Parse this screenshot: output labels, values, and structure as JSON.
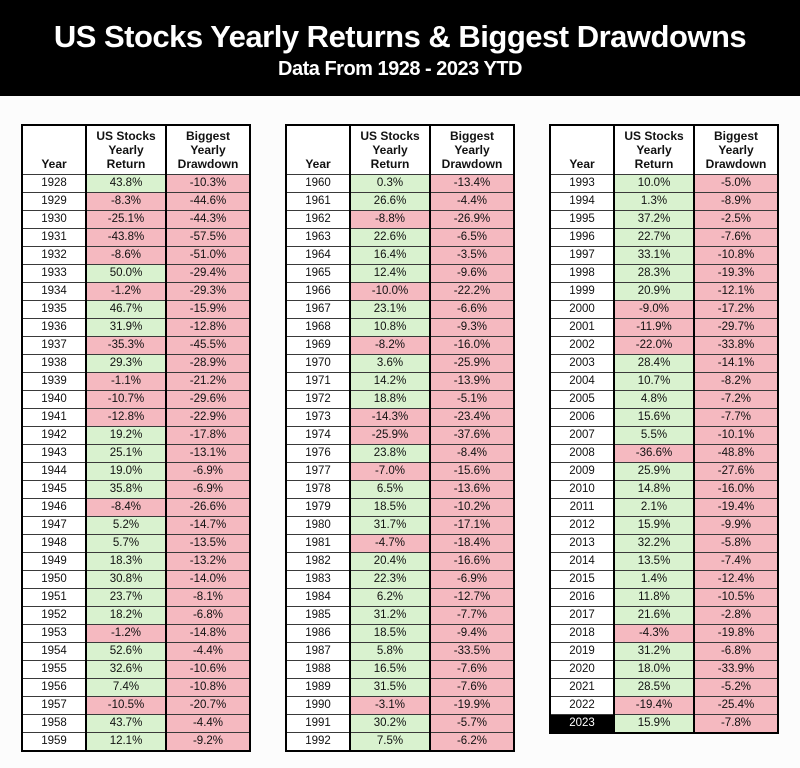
{
  "header": {
    "title": "US Stocks Yearly Returns & Biggest Drawdowns",
    "subtitle": "Data From 1928 - 2023 YTD"
  },
  "colors": {
    "positive_cell": "#d9f2cf",
    "negative_cell": "#f5b9c0",
    "banner_bg": "#000000",
    "banner_text": "#ffffff",
    "highlight_year_bg": "#000000",
    "highlight_year_text": "#ffffff"
  },
  "columns": [
    {
      "label": "Year"
    },
    {
      "label": "US Stocks\nYearly\nReturn"
    },
    {
      "label": "Biggest\nYearly\nDrawdown"
    }
  ],
  "highlight_year": "2023",
  "tables": [
    {
      "rows": [
        [
          "1928",
          "43.8%",
          "-10.3%"
        ],
        [
          "1929",
          "-8.3%",
          "-44.6%"
        ],
        [
          "1930",
          "-25.1%",
          "-44.3%"
        ],
        [
          "1931",
          "-43.8%",
          "-57.5%"
        ],
        [
          "1932",
          "-8.6%",
          "-51.0%"
        ],
        [
          "1933",
          "50.0%",
          "-29.4%"
        ],
        [
          "1934",
          "-1.2%",
          "-29.3%"
        ],
        [
          "1935",
          "46.7%",
          "-15.9%"
        ],
        [
          "1936",
          "31.9%",
          "-12.8%"
        ],
        [
          "1937",
          "-35.3%",
          "-45.5%"
        ],
        [
          "1938",
          "29.3%",
          "-28.9%"
        ],
        [
          "1939",
          "-1.1%",
          "-21.2%"
        ],
        [
          "1940",
          "-10.7%",
          "-29.6%"
        ],
        [
          "1941",
          "-12.8%",
          "-22.9%"
        ],
        [
          "1942",
          "19.2%",
          "-17.8%"
        ],
        [
          "1943",
          "25.1%",
          "-13.1%"
        ],
        [
          "1944",
          "19.0%",
          "-6.9%"
        ],
        [
          "1945",
          "35.8%",
          "-6.9%"
        ],
        [
          "1946",
          "-8.4%",
          "-26.6%"
        ],
        [
          "1947",
          "5.2%",
          "-14.7%"
        ],
        [
          "1948",
          "5.7%",
          "-13.5%"
        ],
        [
          "1949",
          "18.3%",
          "-13.2%"
        ],
        [
          "1950",
          "30.8%",
          "-14.0%"
        ],
        [
          "1951",
          "23.7%",
          "-8.1%"
        ],
        [
          "1952",
          "18.2%",
          "-6.8%"
        ],
        [
          "1953",
          "-1.2%",
          "-14.8%"
        ],
        [
          "1954",
          "52.6%",
          "-4.4%"
        ],
        [
          "1955",
          "32.6%",
          "-10.6%"
        ],
        [
          "1956",
          "7.4%",
          "-10.8%"
        ],
        [
          "1957",
          "-10.5%",
          "-20.7%"
        ],
        [
          "1958",
          "43.7%",
          "-4.4%"
        ],
        [
          "1959",
          "12.1%",
          "-9.2%"
        ]
      ]
    },
    {
      "rows": [
        [
          "1960",
          "0.3%",
          "-13.4%"
        ],
        [
          "1961",
          "26.6%",
          "-4.4%"
        ],
        [
          "1962",
          "-8.8%",
          "-26.9%"
        ],
        [
          "1963",
          "22.6%",
          "-6.5%"
        ],
        [
          "1964",
          "16.4%",
          "-3.5%"
        ],
        [
          "1965",
          "12.4%",
          "-9.6%"
        ],
        [
          "1966",
          "-10.0%",
          "-22.2%"
        ],
        [
          "1967",
          "23.1%",
          "-6.6%"
        ],
        [
          "1968",
          "10.8%",
          "-9.3%"
        ],
        [
          "1969",
          "-8.2%",
          "-16.0%"
        ],
        [
          "1970",
          "3.6%",
          "-25.9%"
        ],
        [
          "1971",
          "14.2%",
          "-13.9%"
        ],
        [
          "1972",
          "18.8%",
          "-5.1%"
        ],
        [
          "1973",
          "-14.3%",
          "-23.4%"
        ],
        [
          "1974",
          "-25.9%",
          "-37.6%"
        ],
        [
          "1976",
          "23.8%",
          "-8.4%"
        ],
        [
          "1977",
          "-7.0%",
          "-15.6%"
        ],
        [
          "1978",
          "6.5%",
          "-13.6%"
        ],
        [
          "1979",
          "18.5%",
          "-10.2%"
        ],
        [
          "1980",
          "31.7%",
          "-17.1%"
        ],
        [
          "1981",
          "-4.7%",
          "-18.4%"
        ],
        [
          "1982",
          "20.4%",
          "-16.6%"
        ],
        [
          "1983",
          "22.3%",
          "-6.9%"
        ],
        [
          "1984",
          "6.2%",
          "-12.7%"
        ],
        [
          "1985",
          "31.2%",
          "-7.7%"
        ],
        [
          "1986",
          "18.5%",
          "-9.4%"
        ],
        [
          "1987",
          "5.8%",
          "-33.5%"
        ],
        [
          "1988",
          "16.5%",
          "-7.6%"
        ],
        [
          "1989",
          "31.5%",
          "-7.6%"
        ],
        [
          "1990",
          "-3.1%",
          "-19.9%"
        ],
        [
          "1991",
          "30.2%",
          "-5.7%"
        ],
        [
          "1992",
          "7.5%",
          "-6.2%"
        ]
      ]
    },
    {
      "rows": [
        [
          "1993",
          "10.0%",
          "-5.0%"
        ],
        [
          "1994",
          "1.3%",
          "-8.9%"
        ],
        [
          "1995",
          "37.2%",
          "-2.5%"
        ],
        [
          "1996",
          "22.7%",
          "-7.6%"
        ],
        [
          "1997",
          "33.1%",
          "-10.8%"
        ],
        [
          "1998",
          "28.3%",
          "-19.3%"
        ],
        [
          "1999",
          "20.9%",
          "-12.1%"
        ],
        [
          "2000",
          "-9.0%",
          "-17.2%"
        ],
        [
          "2001",
          "-11.9%",
          "-29.7%"
        ],
        [
          "2002",
          "-22.0%",
          "-33.8%"
        ],
        [
          "2003",
          "28.4%",
          "-14.1%"
        ],
        [
          "2004",
          "10.7%",
          "-8.2%"
        ],
        [
          "2005",
          "4.8%",
          "-7.2%"
        ],
        [
          "2006",
          "15.6%",
          "-7.7%"
        ],
        [
          "2007",
          "5.5%",
          "-10.1%"
        ],
        [
          "2008",
          "-36.6%",
          "-48.8%"
        ],
        [
          "2009",
          "25.9%",
          "-27.6%"
        ],
        [
          "2010",
          "14.8%",
          "-16.0%"
        ],
        [
          "2011",
          "2.1%",
          "-19.4%"
        ],
        [
          "2012",
          "15.9%",
          "-9.9%"
        ],
        [
          "2013",
          "32.2%",
          "-5.8%"
        ],
        [
          "2014",
          "13.5%",
          "-7.4%"
        ],
        [
          "2015",
          "1.4%",
          "-12.4%"
        ],
        [
          "2016",
          "11.8%",
          "-10.5%"
        ],
        [
          "2017",
          "21.6%",
          "-2.8%"
        ],
        [
          "2018",
          "-4.3%",
          "-19.8%"
        ],
        [
          "2019",
          "31.2%",
          "-6.8%"
        ],
        [
          "2020",
          "18.0%",
          "-33.9%"
        ],
        [
          "2021",
          "28.5%",
          "-5.2%"
        ],
        [
          "2022",
          "-19.4%",
          "-25.4%"
        ],
        [
          "2023",
          "15.9%",
          "-7.8%"
        ]
      ]
    }
  ]
}
